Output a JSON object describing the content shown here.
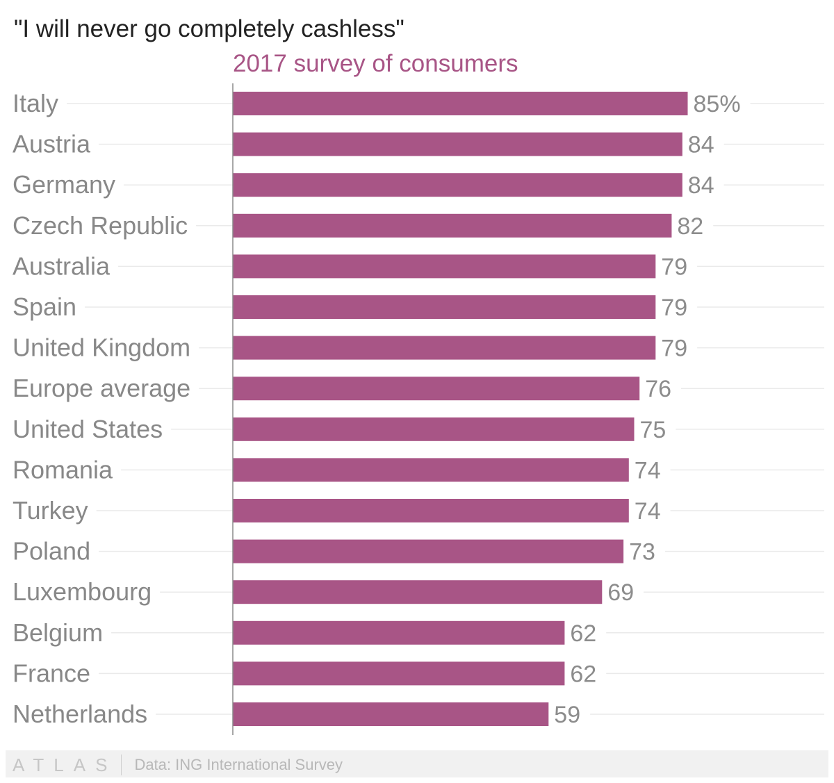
{
  "chart_data": {
    "type": "bar",
    "orientation": "horizontal",
    "title": "\"I will never go completely cashless\"",
    "subtitle": "2017 survey of consumers",
    "categories": [
      "Italy",
      "Austria",
      "Germany",
      "Czech Republic",
      "Australia",
      "Spain",
      "United Kingdom",
      "Europe average",
      "United States",
      "Romania",
      "Turkey",
      "Poland",
      "Luxembourg",
      "Belgium",
      "France",
      "Netherlands"
    ],
    "values": [
      85,
      84,
      84,
      82,
      79,
      79,
      79,
      76,
      75,
      74,
      74,
      73,
      69,
      62,
      62,
      59
    ],
    "value_labels": [
      "85%",
      "84",
      "84",
      "82",
      "79",
      "79",
      "79",
      "76",
      "75",
      "74",
      "74",
      "73",
      "69",
      "62",
      "62",
      "59"
    ],
    "xlim": [
      0,
      100
    ],
    "xlabel": "",
    "ylabel": "",
    "grid": true,
    "legend": "none",
    "bar_color": "#a85586"
  },
  "colors": {
    "bar": "#a85586",
    "subtitle": "#a85586",
    "category_label": "#888888",
    "value_label": "#8c8c8c",
    "gridline": "#eaeaea",
    "axis": "#8a8a8a"
  },
  "footer": {
    "brand": "ATLAS",
    "source": "Data: ING International Survey"
  }
}
